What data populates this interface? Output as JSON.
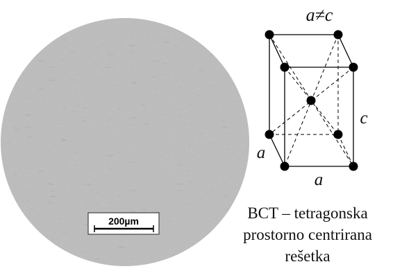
{
  "scale_bar": {
    "label": "200µm"
  },
  "lattice": {
    "relation_label": "a≠c",
    "edge_a_left": "a",
    "edge_a_bottom": "a",
    "edge_c": "c"
  },
  "caption": {
    "line1": "BCT – tetragonska",
    "line2": "prostorno centrirana",
    "line3": "rešetka"
  }
}
